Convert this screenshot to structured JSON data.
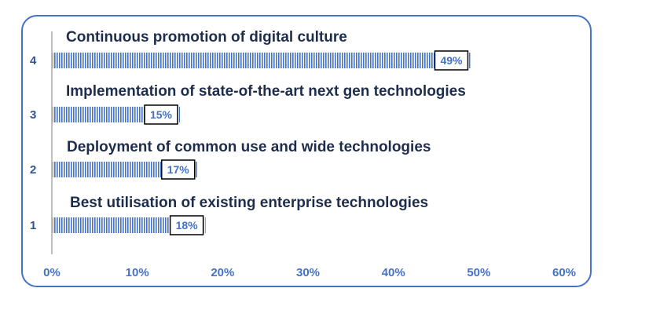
{
  "chart_data": {
    "type": "bar",
    "orientation": "horizontal",
    "categories": [
      "1",
      "2",
      "3",
      "4"
    ],
    "category_titles": [
      "Best utilisation of existing enterprise technologies",
      "Deployment of common use and wide technologies",
      "Implementation of state-of-the-art next gen technologies",
      "Continuous promotion of digital culture"
    ],
    "values": [
      18,
      17,
      15,
      49
    ],
    "data_labels": [
      "18%",
      "17%",
      "15%",
      "49%"
    ],
    "xlim": [
      0,
      60
    ],
    "x_ticks": [
      "0%",
      "10%",
      "20%",
      "30%",
      "40%",
      "50%",
      "60%"
    ],
    "bar_color": "#4472c4",
    "bar_pattern": "vertical-stripes",
    "frame_color": "#4472c4",
    "grid": false
  }
}
